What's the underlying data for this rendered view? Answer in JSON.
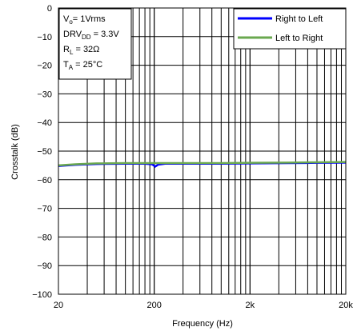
{
  "chart_data": {
    "type": "line",
    "xlabel": "Frequency (Hz)",
    "ylabel": "Crosstalk (dB)",
    "x_scale": "log",
    "xlim": [
      20,
      20000
    ],
    "ylim": [
      -100,
      0
    ],
    "grid": true,
    "x_ticks": [
      {
        "value": 20,
        "label": "20"
      },
      {
        "value": 200,
        "label": "200"
      },
      {
        "value": 2000,
        "label": "2k"
      },
      {
        "value": 20000,
        "label": "20k"
      }
    ],
    "y_ticks": [
      {
        "value": 0,
        "label": "0"
      },
      {
        "value": -10,
        "label": "−10"
      },
      {
        "value": -20,
        "label": "−20"
      },
      {
        "value": -30,
        "label": "−30"
      },
      {
        "value": -40,
        "label": "−40"
      },
      {
        "value": -50,
        "label": "−50"
      },
      {
        "value": -60,
        "label": "−60"
      },
      {
        "value": -70,
        "label": "−70"
      },
      {
        "value": -80,
        "label": "−80"
      },
      {
        "value": -90,
        "label": "−90"
      },
      {
        "value": -100,
        "label": "−100"
      }
    ],
    "conditions": [
      {
        "main": "V",
        "sub": "o",
        "rest": "= 1Vrms"
      },
      {
        "main": "DRV",
        "sub": "DD",
        "rest": " = 3.3V"
      },
      {
        "main": "R",
        "sub": "L",
        "rest": " = 32Ω"
      },
      {
        "main": "T",
        "sub": "A",
        "rest": " = 25°C"
      }
    ],
    "legend_position": "top-right",
    "series": [
      {
        "name": "Right to Left",
        "color": "#0000ff",
        "points": [
          [
            20,
            -55.2
          ],
          [
            30,
            -54.8
          ],
          [
            50,
            -54.5
          ],
          [
            100,
            -54.4
          ],
          [
            160,
            -54.4
          ],
          [
            190,
            -54.6
          ],
          [
            205,
            -55.4
          ],
          [
            220,
            -54.7
          ],
          [
            260,
            -54.4
          ],
          [
            500,
            -54.4
          ],
          [
            1000,
            -54.4
          ],
          [
            2000,
            -54.3
          ],
          [
            5000,
            -54.2
          ],
          [
            10000,
            -54.1
          ],
          [
            20000,
            -54.0
          ]
        ]
      },
      {
        "name": "Left to Right",
        "color": "#6aa84f",
        "points": [
          [
            20,
            -55.0
          ],
          [
            30,
            -54.6
          ],
          [
            50,
            -54.3
          ],
          [
            100,
            -54.2
          ],
          [
            200,
            -54.2
          ],
          [
            500,
            -54.2
          ],
          [
            1000,
            -54.2
          ],
          [
            2000,
            -54.1
          ],
          [
            5000,
            -54.0
          ],
          [
            10000,
            -53.9
          ],
          [
            20000,
            -53.8
          ]
        ]
      }
    ]
  }
}
